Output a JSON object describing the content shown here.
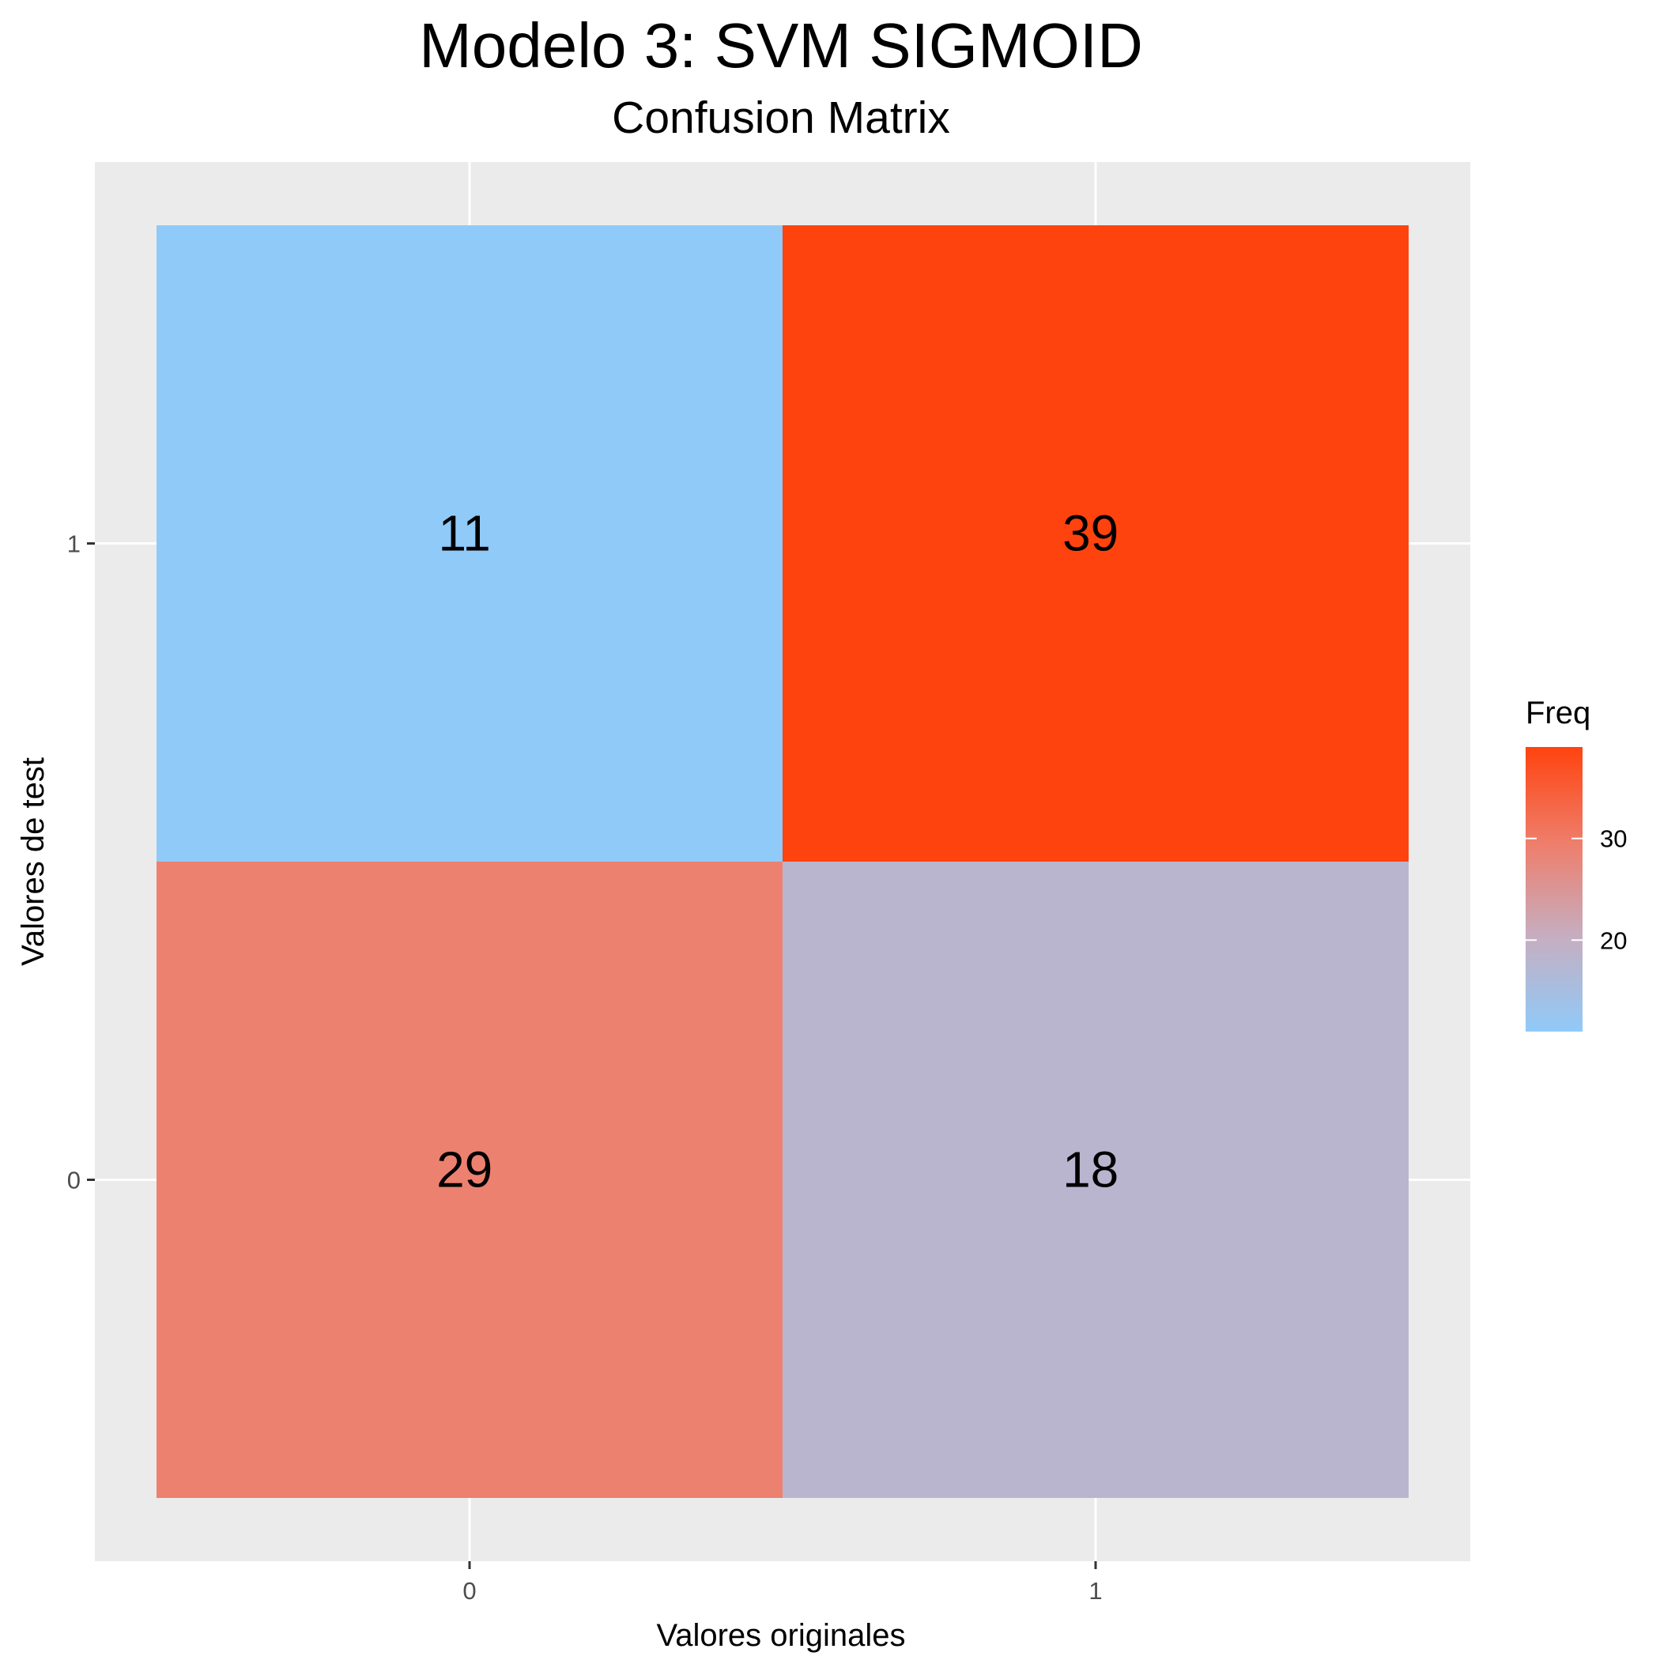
{
  "chart_data": {
    "type": "heatmap",
    "title": "Modelo 3: SVM SIGMOID",
    "subtitle": "Confusion Matrix",
    "xlabel": "Valores originales",
    "ylabel": "Valores de test",
    "x_categories": [
      "0",
      "1"
    ],
    "y_categories": [
      "0",
      "1"
    ],
    "cells": [
      {
        "x": "0",
        "y": "1",
        "value": 11,
        "label": "11"
      },
      {
        "x": "1",
        "y": "1",
        "value": 39,
        "label": "39"
      },
      {
        "x": "0",
        "y": "0",
        "value": 29,
        "label": "29"
      },
      {
        "x": "1",
        "y": "0",
        "value": 18,
        "label": "18"
      }
    ],
    "legend": {
      "title": "Freq",
      "placement": "right",
      "ticks": [
        {
          "value": 20,
          "label": "20"
        },
        {
          "value": 30,
          "label": "30"
        }
      ],
      "range": [
        11,
        39
      ],
      "colors": [
        "#90caf9",
        "#c6aec1",
        "#ef7d6a",
        "#ff430f"
      ]
    },
    "panel_background": "#ebebeb",
    "grid_color": "#ffffff",
    "grid": true
  }
}
